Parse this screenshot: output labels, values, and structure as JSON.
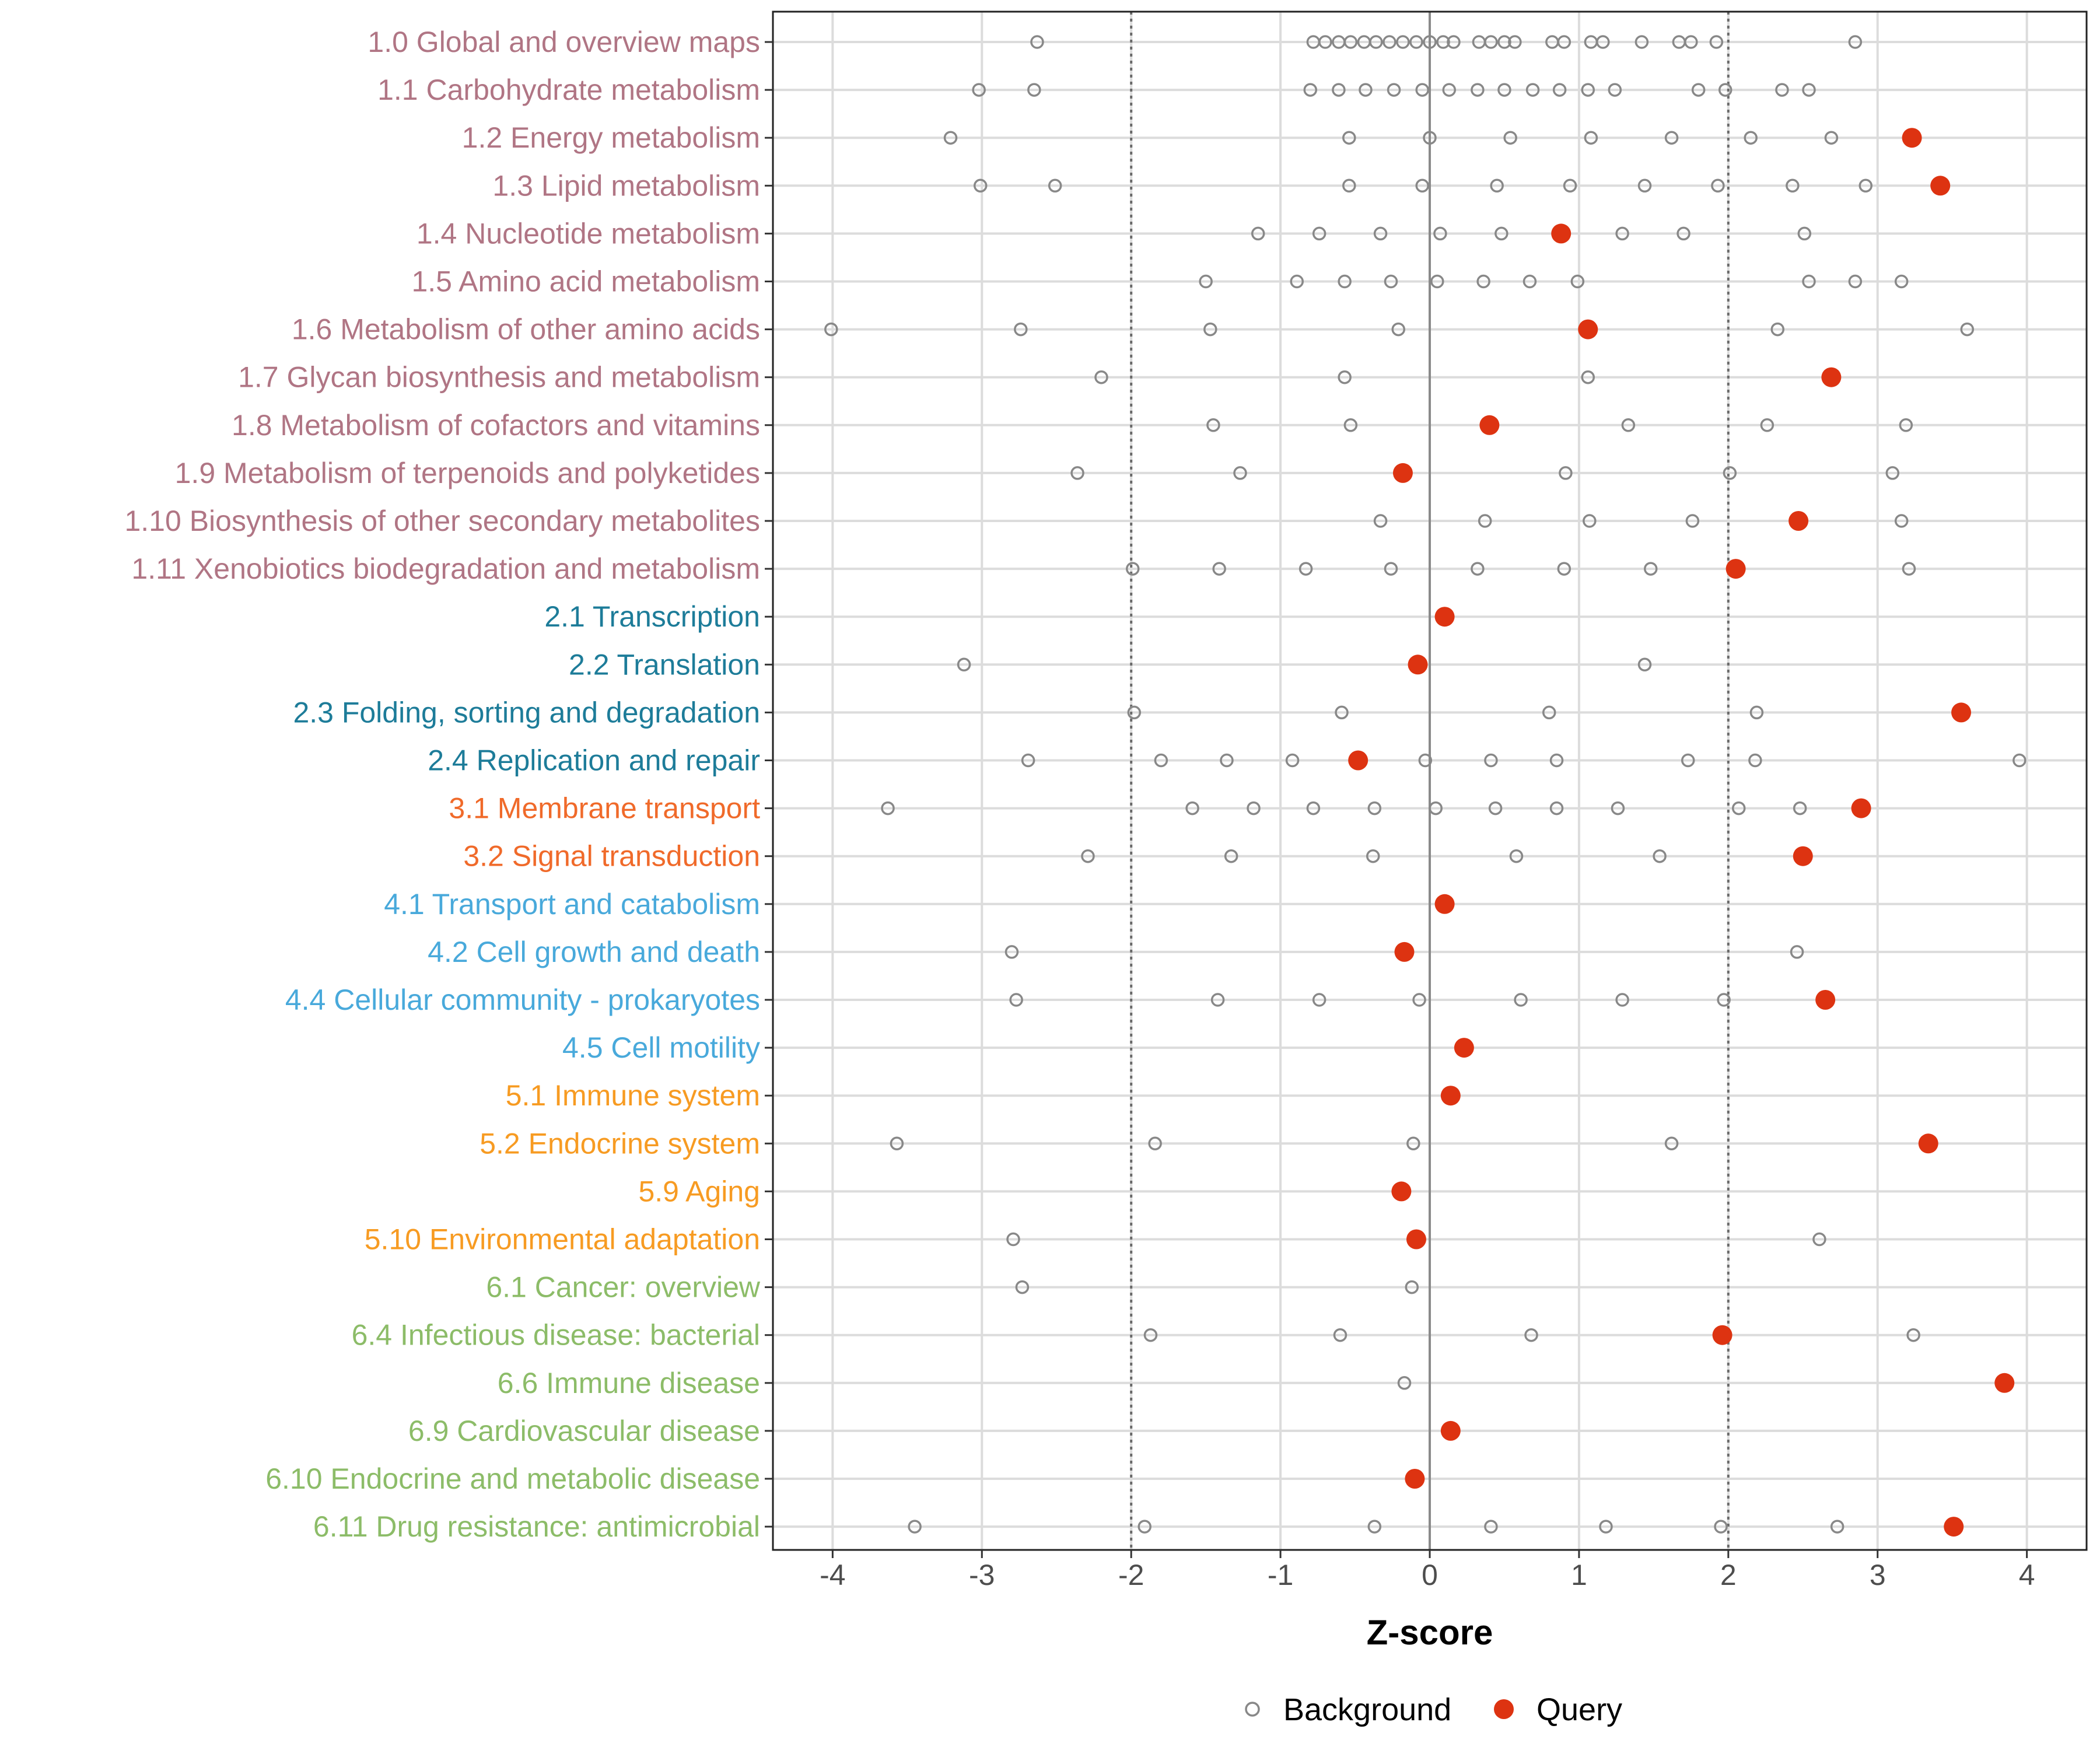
{
  "chart_data": {
    "type": "scatter",
    "xlabel": "Z-score",
    "ylabel": "",
    "xlim": [
      -4.4,
      4.4
    ],
    "x_ticks": [
      "-4",
      "-3",
      "-2",
      "-1",
      "0",
      "1",
      "2",
      "3",
      "4"
    ],
    "x_tick_values": [
      -4,
      -3,
      -2,
      -1,
      0,
      1,
      2,
      3,
      4
    ],
    "reference_lines": [
      -2,
      0,
      2
    ],
    "grid": true,
    "legend_position": "bottom",
    "legend": [
      {
        "name": "Background",
        "marker": "open-circle",
        "color": "#888888"
      },
      {
        "name": "Query",
        "marker": "filled-circle",
        "color": "#dd3311"
      }
    ],
    "group_colors": {
      "1": "#b07584",
      "2": "#1d7c99",
      "3": "#f06a2a",
      "4": "#48a9db",
      "5": "#f79b22",
      "6": "#8cbc68"
    },
    "categories": [
      {
        "label": "1.0 Global and overview maps",
        "group": "1",
        "query": null,
        "background": [
          -2.63,
          -0.78,
          -0.7,
          -0.61,
          -0.53,
          -0.44,
          -0.36,
          -0.27,
          -0.18,
          -0.09,
          0,
          0.09,
          0.16,
          0.33,
          0.41,
          0.5,
          0.57,
          0.82,
          0.9,
          1.08,
          1.16,
          1.42,
          1.67,
          1.75,
          1.92,
          2.85
        ]
      },
      {
        "label": "1.1 Carbohydrate metabolism",
        "group": "1",
        "query": null,
        "background": [
          -3.02,
          -2.65,
          -0.8,
          -0.61,
          -0.43,
          -0.24,
          -0.05,
          0.13,
          0.32,
          0.5,
          0.69,
          0.87,
          1.06,
          1.24,
          1.8,
          1.98,
          2.36,
          2.54
        ]
      },
      {
        "label": "1.2 Energy metabolism",
        "group": "1",
        "query": 3.23,
        "background": [
          -3.21,
          -0.54,
          0,
          0.54,
          1.08,
          1.62,
          2.15,
          2.69
        ]
      },
      {
        "label": "1.3 Lipid metabolism",
        "group": "1",
        "query": 3.42,
        "background": [
          -3.01,
          -2.51,
          -0.54,
          -0.05,
          0.45,
          0.94,
          1.44,
          1.93,
          2.43,
          2.92
        ]
      },
      {
        "label": "1.4 Nucleotide metabolism",
        "group": "1",
        "query": 0.88,
        "background": [
          -1.15,
          -0.74,
          -0.33,
          0.07,
          0.48,
          1.29,
          1.7,
          2.51
        ]
      },
      {
        "label": "1.5 Amino acid metabolism",
        "group": "1",
        "query": null,
        "background": [
          -1.5,
          -0.89,
          -0.57,
          -0.26,
          0.05,
          0.36,
          0.67,
          0.99,
          2.54,
          2.85,
          3.16
        ]
      },
      {
        "label": "1.6 Metabolism of other amino acids",
        "group": "1",
        "query": 1.06,
        "background": [
          -4.01,
          -2.74,
          -1.47,
          -0.21,
          2.33,
          3.6
        ]
      },
      {
        "label": "1.7 Glycan biosynthesis and metabolism",
        "group": "1",
        "query": 2.69,
        "background": [
          -2.2,
          -0.57,
          1.06
        ]
      },
      {
        "label": "1.8 Metabolism of cofactors and vitamins",
        "group": "1",
        "query": 0.4,
        "background": [
          -1.45,
          -0.53,
          1.33,
          2.26,
          3.19
        ]
      },
      {
        "label": "1.9 Metabolism of terpenoids and polyketides",
        "group": "1",
        "query": -0.18,
        "background": [
          -2.36,
          -1.27,
          0.91,
          2.01,
          3.1
        ]
      },
      {
        "label": "1.10 Biosynthesis of other secondary metabolites",
        "group": "1",
        "query": 2.47,
        "background": [
          -0.33,
          0.37,
          1.07,
          1.76,
          3.16
        ]
      },
      {
        "label": "1.11 Xenobiotics biodegradation and metabolism",
        "group": "1",
        "query": 2.05,
        "background": [
          -1.99,
          -1.41,
          -0.83,
          -0.26,
          0.32,
          0.9,
          1.48,
          3.21
        ]
      },
      {
        "label": "2.1 Transcription",
        "group": "2",
        "query": 0.1,
        "background": []
      },
      {
        "label": "2.2 Translation",
        "group": "2",
        "query": -0.08,
        "background": [
          -3.12,
          1.44
        ]
      },
      {
        "label": "2.3 Folding, sorting and degradation",
        "group": "2",
        "query": 3.56,
        "background": [
          -1.98,
          -0.59,
          0.8,
          2.19
        ]
      },
      {
        "label": "2.4 Replication and repair",
        "group": "2",
        "query": -0.48,
        "background": [
          -2.69,
          -1.8,
          -1.36,
          -0.92,
          -0.03,
          0.41,
          0.85,
          1.73,
          2.18,
          3.95
        ]
      },
      {
        "label": "3.1 Membrane transport",
        "group": "3",
        "query": 2.89,
        "background": [
          -3.63,
          -1.59,
          -1.18,
          -0.78,
          -0.37,
          0.04,
          0.44,
          0.85,
          1.26,
          2.07,
          2.48
        ]
      },
      {
        "label": "3.2 Signal transduction",
        "group": "3",
        "query": 2.5,
        "background": [
          -2.29,
          -1.33,
          -0.38,
          0.58,
          1.54
        ]
      },
      {
        "label": "4.1 Transport and catabolism",
        "group": "4",
        "query": 0.1,
        "background": []
      },
      {
        "label": "4.2 Cell growth and death",
        "group": "4",
        "query": -0.17,
        "background": [
          -2.8,
          2.46
        ]
      },
      {
        "label": "4.4 Cellular community - prokaryotes",
        "group": "4",
        "query": 2.65,
        "background": [
          -2.77,
          -1.42,
          -0.74,
          -0.07,
          0.61,
          1.29,
          1.97
        ]
      },
      {
        "label": "4.5 Cell motility",
        "group": "4",
        "query": 0.23,
        "background": []
      },
      {
        "label": "5.1 Immune system",
        "group": "5",
        "query": 0.14,
        "background": []
      },
      {
        "label": "5.2 Endocrine system",
        "group": "5",
        "query": 3.34,
        "background": [
          -3.57,
          -1.84,
          -0.11,
          1.62
        ]
      },
      {
        "label": "5.9 Aging",
        "group": "5",
        "query": -0.19,
        "background": []
      },
      {
        "label": "5.10 Environmental adaptation",
        "group": "5",
        "query": -0.09,
        "background": [
          -2.79,
          2.61
        ]
      },
      {
        "label": "6.1 Cancer: overview",
        "group": "6",
        "query": null,
        "background": [
          -2.73,
          -0.12
        ]
      },
      {
        "label": "6.4 Infectious disease: bacterial",
        "group": "6",
        "query": 1.96,
        "background": [
          -1.87,
          -0.6,
          0.68,
          3.24
        ]
      },
      {
        "label": "6.6 Immune disease",
        "group": "6",
        "query": 3.85,
        "background": [
          -0.17
        ]
      },
      {
        "label": "6.9 Cardiovascular disease",
        "group": "6",
        "query": 0.14,
        "background": []
      },
      {
        "label": "6.10 Endocrine and metabolic disease",
        "group": "6",
        "query": -0.1,
        "background": []
      },
      {
        "label": "6.11 Drug resistance: antimicrobial",
        "group": "6",
        "query": 3.51,
        "background": [
          -3.45,
          -1.91,
          -0.37,
          0.41,
          1.18,
          1.95,
          2.73
        ]
      }
    ]
  }
}
